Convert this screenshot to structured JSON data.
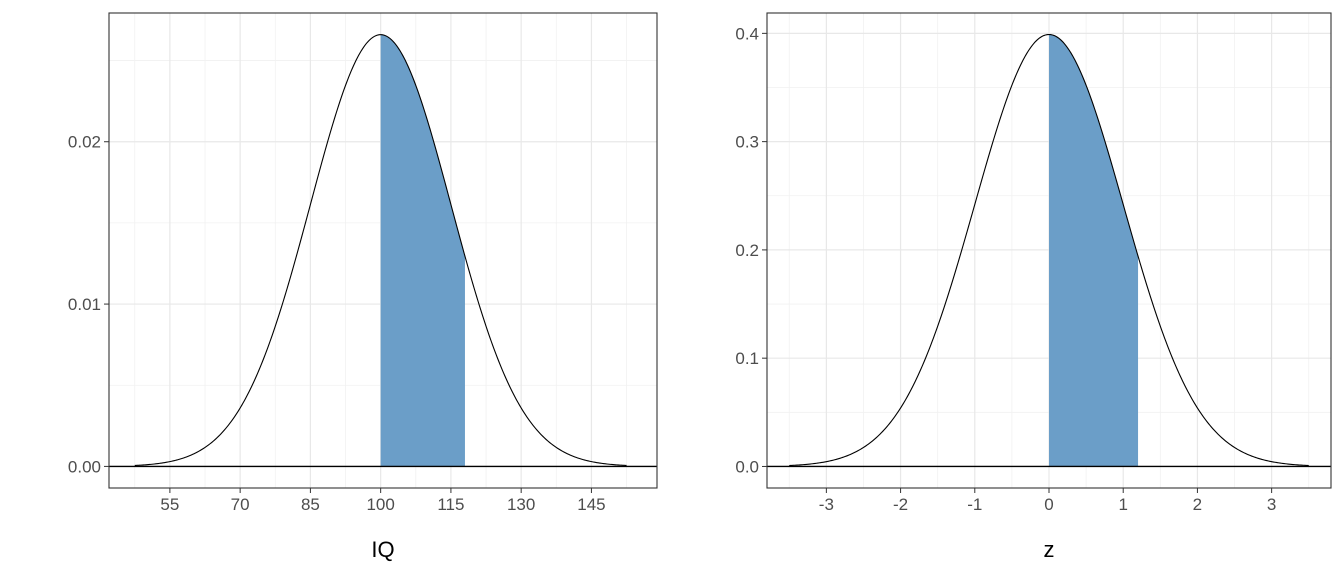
{
  "chart_data": [
    {
      "type": "area",
      "xlabel": "IQ",
      "ylabel": "",
      "xlim": [
        42,
        159
      ],
      "ylim": [
        -0.00133,
        0.02793
      ],
      "x_ticks": [
        "55",
        "70",
        "85",
        "100",
        "115",
        "130",
        "145"
      ],
      "y_ticks": [
        "0.00",
        "0.01",
        "0.02"
      ],
      "x_tick_values": [
        55,
        70,
        85,
        100,
        115,
        130,
        145
      ],
      "y_tick_values": [
        0,
        0.01,
        0.02
      ],
      "curve": {
        "distribution": "normal",
        "mean": 100,
        "sd": 15,
        "x_range": [
          47.5,
          152.5
        ]
      },
      "shaded_region": {
        "from": 100,
        "to": 118,
        "color": "#6b9ec8"
      },
      "grid": true
    },
    {
      "type": "area",
      "xlabel": "z",
      "ylabel": "",
      "xlim": [
        -3.8,
        3.8
      ],
      "ylim": [
        -0.0199,
        0.4188
      ],
      "x_ticks": [
        "-3",
        "-2",
        "-1",
        "0",
        "1",
        "2",
        "3"
      ],
      "y_ticks": [
        "0.0",
        "0.1",
        "0.2",
        "0.3",
        "0.4"
      ],
      "x_tick_values": [
        -3,
        -2,
        -1,
        0,
        1,
        2,
        3
      ],
      "y_tick_values": [
        0,
        0.1,
        0.2,
        0.3,
        0.4
      ],
      "curve": {
        "distribution": "normal",
        "mean": 0,
        "sd": 1,
        "x_range": [
          -3.5,
          3.5
        ]
      },
      "shaded_region": {
        "from": 0,
        "to": 1.2,
        "color": "#6b9ec8"
      },
      "grid": true
    }
  ]
}
